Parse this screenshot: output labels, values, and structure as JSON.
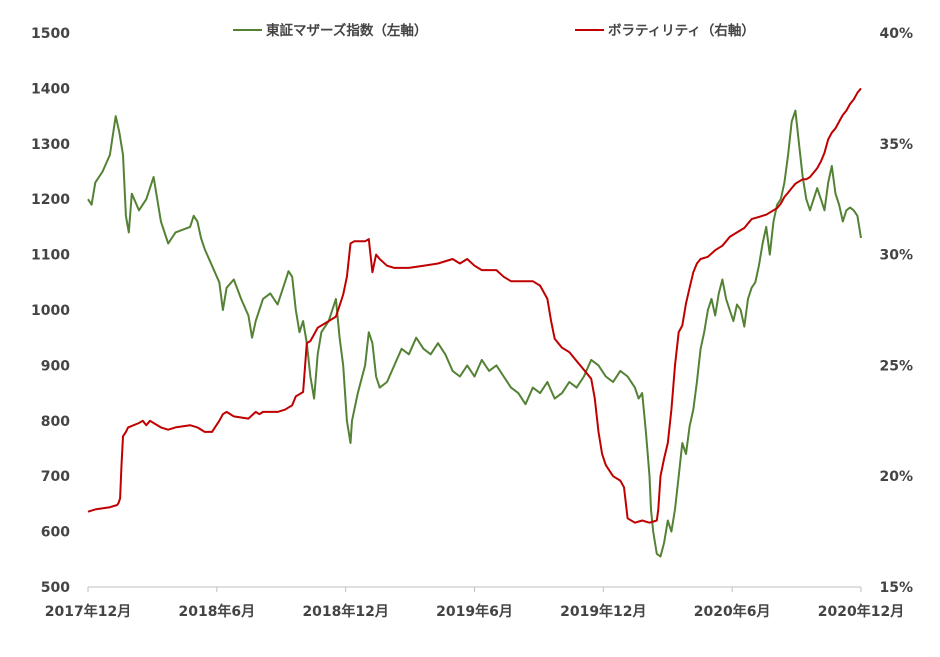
{
  "chart_data": {
    "type": "line",
    "title": "",
    "x_categories": [
      "2017年12月",
      "2018年6月",
      "2018年12月",
      "2019年6月",
      "2019年12月",
      "2020年6月",
      "2020年12月"
    ],
    "y_left": {
      "min": 500,
      "max": 1500,
      "ticks": [
        500,
        600,
        700,
        800,
        900,
        1000,
        1100,
        1200,
        1300,
        1400,
        1500
      ]
    },
    "y_right": {
      "min": 15,
      "max": 40,
      "ticks": [
        "15%",
        "20%",
        "25%",
        "30%",
        "35%",
        "40%"
      ]
    },
    "grid": false,
    "legend_position": "top",
    "series": [
      {
        "name": "東証マザーズ指数（左軸）",
        "axis": "left",
        "color": "#548235",
        "points": [
          [
            0,
            1200
          ],
          [
            0.05,
            1190
          ],
          [
            0.1,
            1230
          ],
          [
            0.2,
            1250
          ],
          [
            0.3,
            1280
          ],
          [
            0.38,
            1350
          ],
          [
            0.43,
            1320
          ],
          [
            0.48,
            1280
          ],
          [
            0.52,
            1170
          ],
          [
            0.56,
            1140
          ],
          [
            0.6,
            1210
          ],
          [
            0.7,
            1180
          ],
          [
            0.8,
            1200
          ],
          [
            0.9,
            1240
          ],
          [
            1.0,
            1160
          ],
          [
            1.1,
            1120
          ],
          [
            1.2,
            1140
          ],
          [
            1.3,
            1145
          ],
          [
            1.4,
            1150
          ],
          [
            1.45,
            1170
          ],
          [
            1.5,
            1160
          ],
          [
            1.55,
            1130
          ],
          [
            1.6,
            1110
          ],
          [
            1.7,
            1080
          ],
          [
            1.8,
            1050
          ],
          [
            1.85,
            1000
          ],
          [
            1.9,
            1040
          ],
          [
            2.0,
            1055
          ],
          [
            2.1,
            1020
          ],
          [
            2.2,
            990
          ],
          [
            2.25,
            950
          ],
          [
            2.3,
            980
          ],
          [
            2.4,
            1020
          ],
          [
            2.5,
            1030
          ],
          [
            2.6,
            1010
          ],
          [
            2.7,
            1050
          ],
          [
            2.75,
            1070
          ],
          [
            2.8,
            1060
          ],
          [
            2.85,
            1000
          ],
          [
            2.9,
            960
          ],
          [
            2.95,
            980
          ],
          [
            3.0,
            940
          ],
          [
            3.05,
            880
          ],
          [
            3.1,
            840
          ],
          [
            3.15,
            920
          ],
          [
            3.2,
            960
          ],
          [
            3.3,
            980
          ],
          [
            3.4,
            1020
          ],
          [
            3.45,
            950
          ],
          [
            3.5,
            900
          ],
          [
            3.55,
            800
          ],
          [
            3.6,
            760
          ],
          [
            3.62,
            800
          ],
          [
            3.7,
            850
          ],
          [
            3.8,
            900
          ],
          [
            3.85,
            960
          ],
          [
            3.9,
            940
          ],
          [
            3.95,
            880
          ],
          [
            4.0,
            860
          ],
          [
            4.1,
            870
          ],
          [
            4.2,
            900
          ],
          [
            4.3,
            930
          ],
          [
            4.4,
            920
          ],
          [
            4.5,
            950
          ],
          [
            4.6,
            930
          ],
          [
            4.7,
            920
          ],
          [
            4.8,
            940
          ],
          [
            4.9,
            920
          ],
          [
            5.0,
            890
          ],
          [
            5.1,
            880
          ],
          [
            5.2,
            900
          ],
          [
            5.3,
            880
          ],
          [
            5.4,
            910
          ],
          [
            5.5,
            890
          ],
          [
            5.6,
            900
          ],
          [
            5.7,
            880
          ],
          [
            5.8,
            860
          ],
          [
            5.9,
            850
          ],
          [
            6.0,
            830
          ],
          [
            6.1,
            860
          ],
          [
            6.2,
            850
          ],
          [
            6.3,
            870
          ],
          [
            6.4,
            840
          ],
          [
            6.5,
            850
          ],
          [
            6.6,
            870
          ],
          [
            6.7,
            860
          ],
          [
            6.8,
            880
          ],
          [
            6.9,
            910
          ],
          [
            7.0,
            900
          ],
          [
            7.1,
            880
          ],
          [
            7.2,
            870
          ],
          [
            7.3,
            890
          ],
          [
            7.4,
            880
          ],
          [
            7.5,
            860
          ],
          [
            7.55,
            840
          ],
          [
            7.6,
            850
          ],
          [
            7.65,
            780
          ],
          [
            7.7,
            700
          ],
          [
            7.72,
            640
          ],
          [
            7.75,
            600
          ],
          [
            7.8,
            560
          ],
          [
            7.85,
            555
          ],
          [
            7.9,
            580
          ],
          [
            7.95,
            620
          ],
          [
            8.0,
            600
          ],
          [
            8.05,
            640
          ],
          [
            8.1,
            700
          ],
          [
            8.15,
            760
          ],
          [
            8.2,
            740
          ],
          [
            8.25,
            790
          ],
          [
            8.3,
            820
          ],
          [
            8.35,
            870
          ],
          [
            8.4,
            930
          ],
          [
            8.45,
            960
          ],
          [
            8.5,
            1000
          ],
          [
            8.55,
            1020
          ],
          [
            8.6,
            990
          ],
          [
            8.65,
            1030
          ],
          [
            8.7,
            1055
          ],
          [
            8.75,
            1020
          ],
          [
            8.8,
            1000
          ],
          [
            8.85,
            980
          ],
          [
            8.9,
            1010
          ],
          [
            8.95,
            1000
          ],
          [
            9.0,
            970
          ],
          [
            9.05,
            1020
          ],
          [
            9.1,
            1040
          ],
          [
            9.15,
            1050
          ],
          [
            9.2,
            1080
          ],
          [
            9.25,
            1120
          ],
          [
            9.3,
            1150
          ],
          [
            9.35,
            1100
          ],
          [
            9.4,
            1160
          ],
          [
            9.45,
            1190
          ],
          [
            9.5,
            1200
          ],
          [
            9.55,
            1230
          ],
          [
            9.6,
            1280
          ],
          [
            9.65,
            1340
          ],
          [
            9.7,
            1360
          ],
          [
            9.75,
            1300
          ],
          [
            9.8,
            1240
          ],
          [
            9.85,
            1200
          ],
          [
            9.9,
            1180
          ],
          [
            9.95,
            1200
          ],
          [
            10.0,
            1220
          ],
          [
            10.05,
            1200
          ],
          [
            10.1,
            1180
          ],
          [
            10.15,
            1230
          ],
          [
            10.2,
            1260
          ],
          [
            10.25,
            1210
          ],
          [
            10.3,
            1190
          ],
          [
            10.35,
            1160
          ],
          [
            10.4,
            1180
          ],
          [
            10.45,
            1185
          ],
          [
            10.5,
            1180
          ],
          [
            10.55,
            1170
          ],
          [
            10.6,
            1130
          ]
        ]
      },
      {
        "name": "ボラティリティ（右軸）",
        "axis": "right",
        "color": "#c00000",
        "points": [
          [
            0,
            18.4
          ],
          [
            0.1,
            18.5
          ],
          [
            0.3,
            18.6
          ],
          [
            0.4,
            18.7
          ],
          [
            0.42,
            18.8
          ],
          [
            0.44,
            19.0
          ],
          [
            0.46,
            20.5
          ],
          [
            0.48,
            21.8
          ],
          [
            0.52,
            22.0
          ],
          [
            0.55,
            22.2
          ],
          [
            0.7,
            22.4
          ],
          [
            0.75,
            22.5
          ],
          [
            0.8,
            22.3
          ],
          [
            0.85,
            22.5
          ],
          [
            0.9,
            22.4
          ],
          [
            1.0,
            22.2
          ],
          [
            1.1,
            22.1
          ],
          [
            1.2,
            22.2
          ],
          [
            1.4,
            22.3
          ],
          [
            1.5,
            22.2
          ],
          [
            1.6,
            22.0
          ],
          [
            1.7,
            22.0
          ],
          [
            1.8,
            22.5
          ],
          [
            1.85,
            22.8
          ],
          [
            1.9,
            22.9
          ],
          [
            2.0,
            22.7
          ],
          [
            2.2,
            22.6
          ],
          [
            2.3,
            22.9
          ],
          [
            2.35,
            22.8
          ],
          [
            2.4,
            22.9
          ],
          [
            2.5,
            22.9
          ],
          [
            2.6,
            22.9
          ],
          [
            2.7,
            23.0
          ],
          [
            2.8,
            23.2
          ],
          [
            2.85,
            23.6
          ],
          [
            2.9,
            23.7
          ],
          [
            2.95,
            23.8
          ],
          [
            3.0,
            26.0
          ],
          [
            3.05,
            26.1
          ],
          [
            3.1,
            26.4
          ],
          [
            3.15,
            26.7
          ],
          [
            3.2,
            26.8
          ],
          [
            3.3,
            27.0
          ],
          [
            3.4,
            27.2
          ],
          [
            3.45,
            27.7
          ],
          [
            3.5,
            28.2
          ],
          [
            3.55,
            29.0
          ],
          [
            3.6,
            30.5
          ],
          [
            3.65,
            30.6
          ],
          [
            3.7,
            30.6
          ],
          [
            3.8,
            30.6
          ],
          [
            3.85,
            30.7
          ],
          [
            3.9,
            29.2
          ],
          [
            3.95,
            30.0
          ],
          [
            4.0,
            29.8
          ],
          [
            4.1,
            29.5
          ],
          [
            4.2,
            29.4
          ],
          [
            4.4,
            29.4
          ],
          [
            4.6,
            29.5
          ],
          [
            4.8,
            29.6
          ],
          [
            5.0,
            29.8
          ],
          [
            5.1,
            29.6
          ],
          [
            5.2,
            29.8
          ],
          [
            5.3,
            29.5
          ],
          [
            5.4,
            29.3
          ],
          [
            5.5,
            29.3
          ],
          [
            5.6,
            29.3
          ],
          [
            5.7,
            29.0
          ],
          [
            5.8,
            28.8
          ],
          [
            5.9,
            28.8
          ],
          [
            6.0,
            28.8
          ],
          [
            6.1,
            28.8
          ],
          [
            6.2,
            28.6
          ],
          [
            6.3,
            28.0
          ],
          [
            6.35,
            27.0
          ],
          [
            6.4,
            26.2
          ],
          [
            6.5,
            25.8
          ],
          [
            6.6,
            25.6
          ],
          [
            6.7,
            25.2
          ],
          [
            6.8,
            24.8
          ],
          [
            6.9,
            24.4
          ],
          [
            6.95,
            23.5
          ],
          [
            7.0,
            22.0
          ],
          [
            7.05,
            21.0
          ],
          [
            7.1,
            20.5
          ],
          [
            7.2,
            20.0
          ],
          [
            7.3,
            19.8
          ],
          [
            7.35,
            19.5
          ],
          [
            7.4,
            18.1
          ],
          [
            7.5,
            17.9
          ],
          [
            7.6,
            18.0
          ],
          [
            7.7,
            17.9
          ],
          [
            7.8,
            18.0
          ],
          [
            7.82,
            18.5
          ],
          [
            7.85,
            20.0
          ],
          [
            7.9,
            20.8
          ],
          [
            7.95,
            21.5
          ],
          [
            8.0,
            23.0
          ],
          [
            8.05,
            25.0
          ],
          [
            8.1,
            26.5
          ],
          [
            8.15,
            26.8
          ],
          [
            8.2,
            27.8
          ],
          [
            8.25,
            28.5
          ],
          [
            8.3,
            29.2
          ],
          [
            8.35,
            29.6
          ],
          [
            8.4,
            29.8
          ],
          [
            8.5,
            29.9
          ],
          [
            8.6,
            30.2
          ],
          [
            8.7,
            30.4
          ],
          [
            8.75,
            30.6
          ],
          [
            8.8,
            30.8
          ],
          [
            8.9,
            31.0
          ],
          [
            9.0,
            31.2
          ],
          [
            9.1,
            31.6
          ],
          [
            9.2,
            31.7
          ],
          [
            9.3,
            31.8
          ],
          [
            9.4,
            32.0
          ],
          [
            9.45,
            32.1
          ],
          [
            9.5,
            32.3
          ],
          [
            9.55,
            32.6
          ],
          [
            9.6,
            32.8
          ],
          [
            9.65,
            33.0
          ],
          [
            9.7,
            33.2
          ],
          [
            9.75,
            33.3
          ],
          [
            9.8,
            33.4
          ],
          [
            9.85,
            33.4
          ],
          [
            9.9,
            33.5
          ],
          [
            9.95,
            33.7
          ],
          [
            10.0,
            33.9
          ],
          [
            10.05,
            34.2
          ],
          [
            10.1,
            34.6
          ],
          [
            10.15,
            35.2
          ],
          [
            10.2,
            35.5
          ],
          [
            10.25,
            35.7
          ],
          [
            10.3,
            36.0
          ],
          [
            10.35,
            36.3
          ],
          [
            10.4,
            36.5
          ],
          [
            10.45,
            36.8
          ],
          [
            10.5,
            37.0
          ],
          [
            10.55,
            37.3
          ],
          [
            10.6,
            37.5
          ]
        ]
      }
    ]
  }
}
